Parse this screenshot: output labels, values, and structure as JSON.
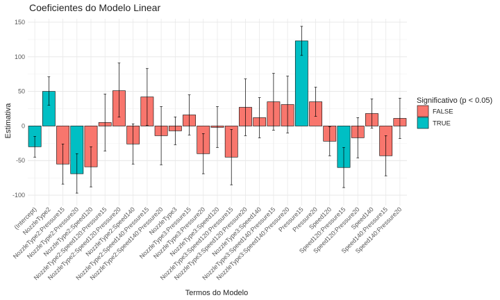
{
  "chart_data": {
    "type": "bar",
    "title": "Coeficientes do Modelo Linear",
    "xlabel": "Termos do Modelo",
    "ylabel": "Estimativa",
    "ylim": [
      -115,
      155
    ],
    "yticks": [
      -100,
      -50,
      0,
      50,
      100,
      150
    ],
    "grid": true,
    "legend": {
      "title": "Significativo (p < 0.05)",
      "placement": "right",
      "entries": [
        {
          "label": "FALSE",
          "color": "#F8766D"
        },
        {
          "label": "TRUE",
          "color": "#00BFC4"
        }
      ]
    },
    "categories": [
      "(Intercept)",
      "NozzleType2",
      "NozzleType2:Pressure15",
      "NozzleType2:Pressure20",
      "NozzleType2:Speed120",
      "NozzleType2:Speed120:Pressure15",
      "NozzleType2:Speed120:Pressure20",
      "NozzleType2:Speed140",
      "NozzleType2:Speed140:Pressure15",
      "NozzleType2:Speed140:Pressure20",
      "NozzleType3",
      "NozzleType3:Pressure15",
      "NozzleType3:Pressure20",
      "NozzleType3:Speed120",
      "NozzleType3:Speed120:Pressure15",
      "NozzleType3:Speed120:Pressure20",
      "NozzleType3:Speed140",
      "NozzleType3:Speed140:Pressure15",
      "NozzleType3:Speed140:Pressure20",
      "Pressure15",
      "Pressure20",
      "Speed120",
      "Speed120:Pressure15",
      "Speed120:Pressure20",
      "Speed140",
      "Speed140:Pressure15",
      "Speed140:Pressure20"
    ],
    "values": [
      -30,
      50,
      -55,
      -69,
      -59,
      5,
      51,
      -26,
      42,
      -14,
      -7,
      16,
      -40,
      -2,
      -45,
      27,
      12,
      35,
      31,
      123,
      35,
      -22,
      -60,
      -17,
      18,
      -43,
      11
    ],
    "error_lower": [
      -45,
      30,
      -84,
      -97,
      -88,
      -36,
      13,
      -55,
      1,
      -56,
      -27,
      -13,
      -69,
      -31,
      -85,
      -14,
      -17,
      -6,
      -10,
      102,
      14,
      -43,
      -89,
      -46,
      -3,
      -72,
      -18
    ],
    "error_upper": [
      -15,
      71,
      -26,
      -40,
      -30,
      46,
      91,
      3,
      83,
      28,
      13,
      45,
      -11,
      28,
      -5,
      68,
      41,
      76,
      72,
      144,
      56,
      -1,
      -31,
      12,
      39,
      -14,
      40
    ],
    "significant": [
      "TRUE",
      "TRUE",
      "FALSE",
      "TRUE",
      "FALSE",
      "FALSE",
      "FALSE",
      "FALSE",
      "FALSE",
      "FALSE",
      "FALSE",
      "FALSE",
      "FALSE",
      "FALSE",
      "FALSE",
      "FALSE",
      "FALSE",
      "FALSE",
      "FALSE",
      "TRUE",
      "FALSE",
      "FALSE",
      "TRUE",
      "FALSE",
      "FALSE",
      "FALSE",
      "FALSE"
    ]
  }
}
